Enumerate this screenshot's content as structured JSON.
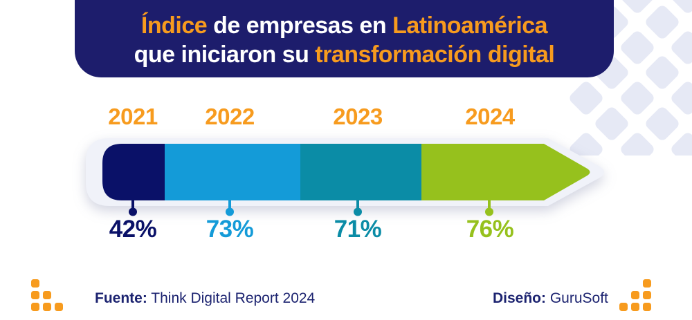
{
  "header": {
    "word_indice": "Índice",
    "mid_line1": " de empresas en ",
    "word_latam": "Latinoamérica",
    "line2_start": "que iniciaron su ",
    "word_transformacion": "transformación digital"
  },
  "chart_data": {
    "type": "bar",
    "orientation": "horizontal-segmented-arrow",
    "title": "Índice de empresas en Latinoamérica que iniciaron su transformación digital",
    "categories": [
      "2021",
      "2022",
      "2023",
      "2024"
    ],
    "values": [
      42,
      73,
      71,
      76
    ],
    "unit": "%",
    "labels": [
      "42%",
      "73%",
      "71%",
      "76%"
    ],
    "colors": [
      "#0a1168",
      "#149bd8",
      "#0b8ca6",
      "#96c11d"
    ],
    "legend": "none",
    "grid": false
  },
  "footer": {
    "source_label": "Fuente:",
    "source_value": " Think Digital Report 2024",
    "design_label": "Diseño:",
    "design_value": " GuruSoft"
  },
  "colors": {
    "orange": "#f79b1e",
    "header_navy": "#1d1d6c",
    "text_navy": "#1c2370",
    "bar_rim": "#f0f2f9",
    "diamond_pattern": "#e6e9f5"
  }
}
